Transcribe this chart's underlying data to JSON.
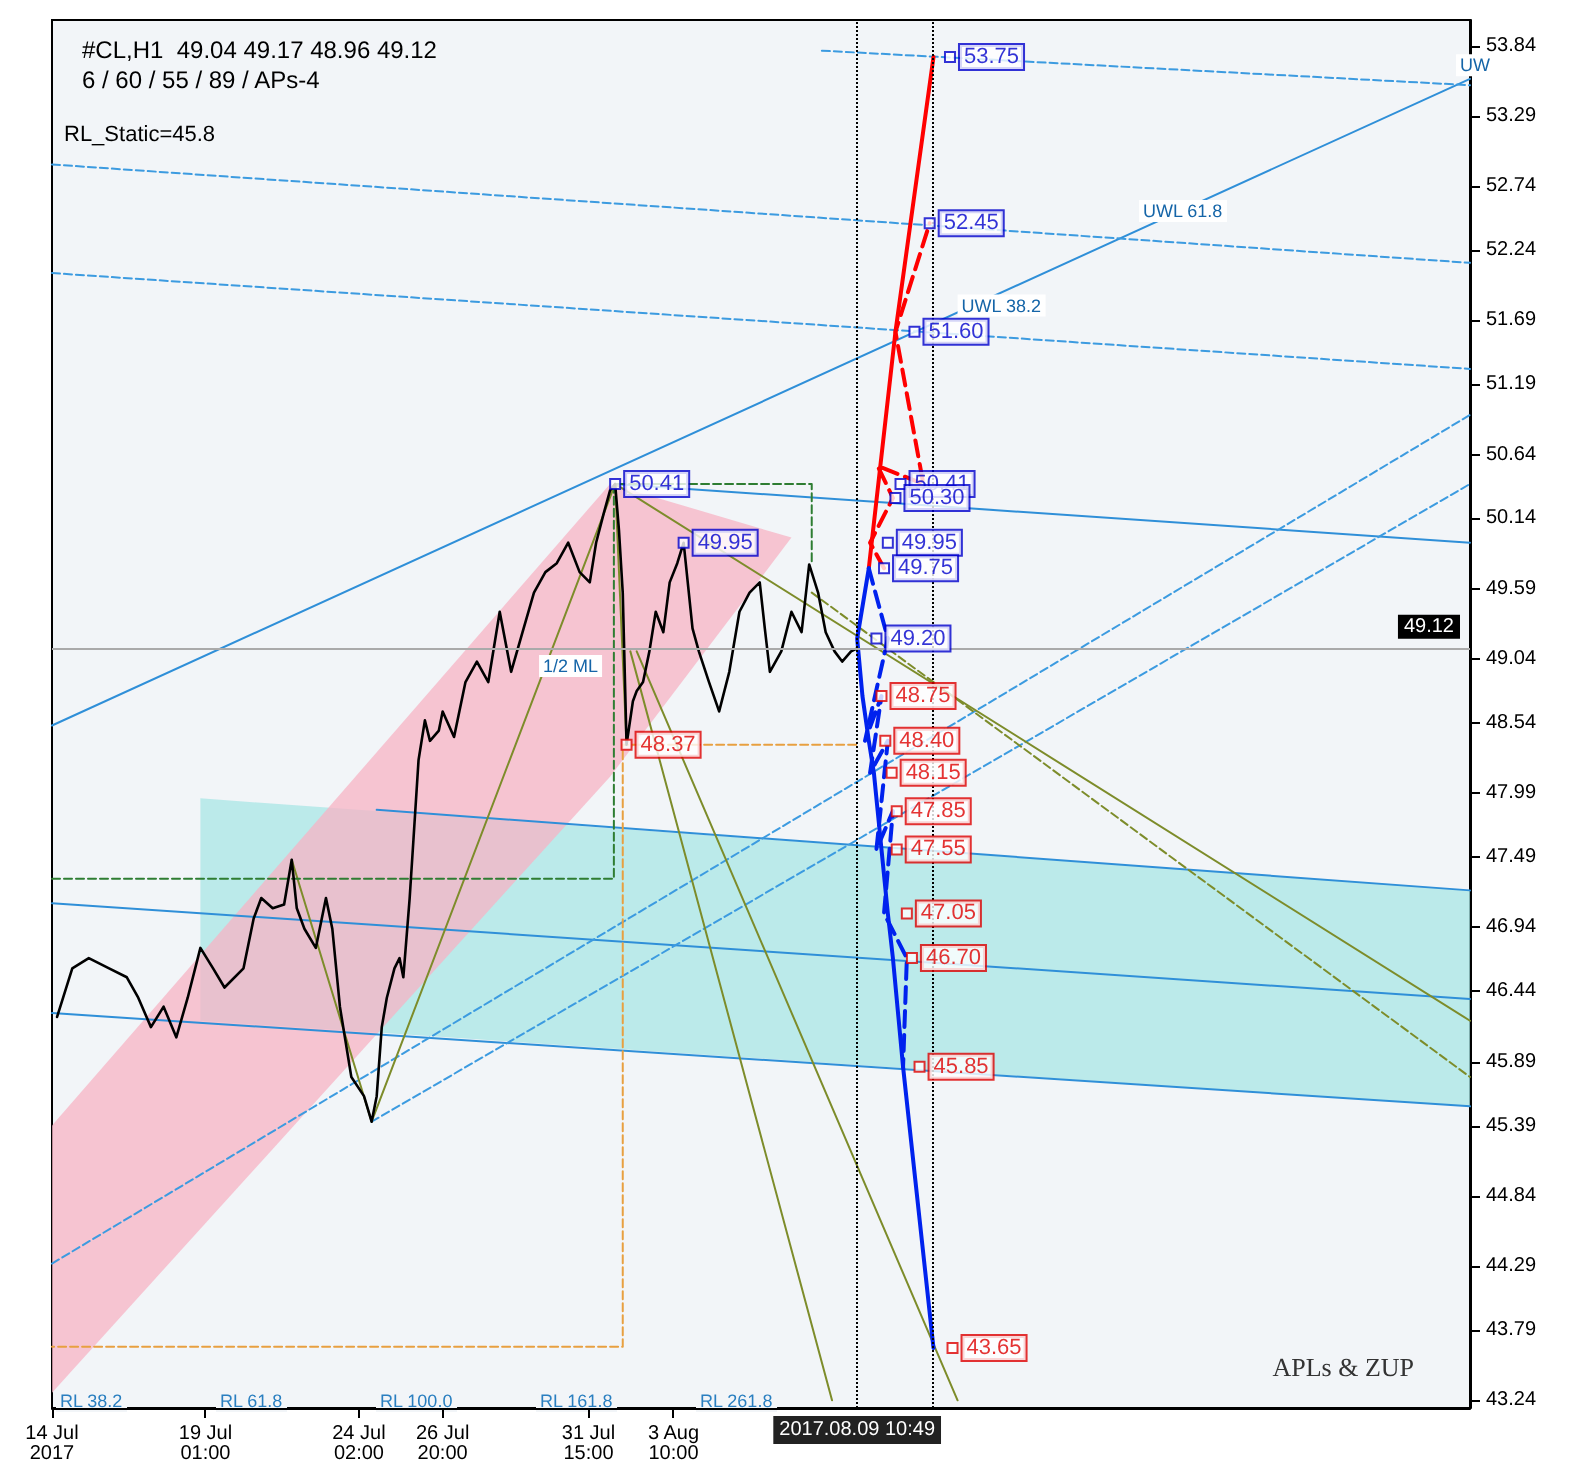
{
  "chart_data": {
    "type": "line",
    "title": "#CL,H1  49.04 49.17 48.96 49.12",
    "subtitle": "6 / 60 / 55 / 89 / APs-4",
    "annotations": [
      "RL_Static=45.8",
      "APLs & ZUP",
      "RL 38.2",
      "RL 61.8",
      "RL 100.0",
      "RL 161.8",
      "RL 261.8",
      {
        "text": "UWL 61.8",
        "x": "2017-08-18T17:00",
        "y": 52.46
      },
      {
        "text": "UWL 38.2",
        "x": "2017-08-12T18:00",
        "y": 51.72
      },
      {
        "text": "UW",
        "x": "2017-08-29T03:00",
        "y": 53.6
      },
      {
        "text": "1/2 ML",
        "x": "2017-07-30T00:00",
        "y": 48.9
      }
    ],
    "xlim": [
      "2017-07-14T00:00",
      "2017-08-29T14:00"
    ],
    "xticks": [
      {
        "value": "2017-07-14",
        "label": "14 Jul 2017"
      },
      {
        "value": "2017-07-19T01:00",
        "label": "19 Jul 01:00"
      },
      {
        "value": "2017-07-24T02:00",
        "label": "24 Jul 02:00"
      },
      {
        "value": "2017-07-26T20:00",
        "label": "26 Jul 20:00"
      },
      {
        "value": "2017-07-31T15:00",
        "label": "31 Jul 15:00"
      },
      {
        "value": "2017-08-03T10:00",
        "label": "3 Aug 10:00"
      }
    ],
    "ylim": [
      43.18,
      54.04
    ],
    "yticks": [
      43.24,
      43.79,
      44.29,
      44.84,
      45.39,
      45.89,
      46.44,
      46.94,
      47.49,
      47.99,
      48.54,
      49.04,
      49.59,
      50.14,
      50.64,
      51.19,
      51.69,
      52.24,
      52.74,
      53.29,
      53.84
    ],
    "marker": "none",
    "ref_lines": [
      {
        "axis": "y",
        "value": 49.12,
        "label": "49.12",
        "color": "#aaaaaa",
        "line_style": "solid"
      },
      {
        "axis": "x",
        "value": "2017-08-09T10:49",
        "label": "2017.08.09 10:49",
        "color": "#000000",
        "line_style": "dotted"
      },
      {
        "axis": "x",
        "value": "2017-08-11T23:00",
        "color": "#000000",
        "line_style": "dotted"
      }
    ],
    "series": [
      {
        "type": "area",
        "color": "#a8e6e6",
        "x": [
          "2017-07-18T21:00",
          "2017-08-29T14:00"
        ],
        "values": [
          null,
          null
        ],
        "lower": [
          46.21,
          45.54
        ],
        "upper": [
          47.95,
          47.23
        ]
      },
      {
        "type": "area",
        "color": "#f7b3c4",
        "x": [
          "2017-07-14T00:00",
          "2017-08-01T08:00",
          "2017-08-07T07:00"
        ],
        "values": [
          null,
          null,
          null
        ],
        "lower": [
          43.3,
          48.12,
          49.99
        ],
        "upper": [
          45.39,
          50.41,
          49.99
        ]
      },
      {
        "color": "#2f8fd8",
        "line_style": "solid",
        "x": [
          "2017-07-14T00:00",
          "2017-08-29T14:00"
        ],
        "values": [
          48.52,
          53.58
        ]
      },
      {
        "color": "#2f8fd8",
        "line_style": "solid",
        "x": [
          "2017-07-24T16:00",
          "2017-08-29T14:00"
        ],
        "values": [
          47.86,
          47.23
        ]
      },
      {
        "color": "#2f8fd8",
        "line_style": "solid",
        "x": [
          "2017-07-14T00:00",
          "2017-08-29T14:00"
        ],
        "values": [
          47.13,
          46.38
        ]
      },
      {
        "color": "#2f8fd8",
        "line_style": "solid",
        "x": [
          "2017-07-14T00:00",
          "2017-08-29T14:00"
        ],
        "values": [
          46.27,
          45.54
        ]
      },
      {
        "color": "#2f8fd8",
        "line_style": "solid",
        "x": [
          "2017-08-01T12:00",
          "2017-08-29T14:00"
        ],
        "values": [
          50.41,
          49.95
        ]
      },
      {
        "color": "#3c9be0",
        "line_style": "dashed",
        "x": [
          "2017-07-14T00:00",
          "2017-08-29T14:00"
        ],
        "values": [
          52.91,
          52.14
        ]
      },
      {
        "color": "#3c9be0",
        "line_style": "dashed",
        "x": [
          "2017-07-14T00:00",
          "2017-08-29T14:00"
        ],
        "values": [
          52.06,
          51.31
        ]
      },
      {
        "color": "#3c9be0",
        "line_style": "dashed",
        "x": [
          "2017-08-08T07:00",
          "2017-08-29T14:00"
        ],
        "values": [
          53.8,
          53.53
        ]
      },
      {
        "color": "#3c9be0",
        "line_style": "dashed",
        "x": [
          "2017-07-14T00:00",
          "2017-08-29T14:00"
        ],
        "values": [
          44.31,
          50.95
        ]
      },
      {
        "color": "#3c9be0",
        "line_style": "dashed",
        "x": [
          "2017-07-24T12:00",
          "2017-08-29T14:00"
        ],
        "values": [
          45.42,
          50.41
        ]
      },
      {
        "color": "#7d8c2a",
        "line_style": "solid",
        "x": [
          "2017-07-21T21:00",
          "2017-07-24T12:00",
          "2017-08-01T12:00",
          "2017-08-01T21:00"
        ],
        "values": [
          47.47,
          45.42,
          50.41,
          48.37
        ]
      },
      {
        "color": "#7d8c2a",
        "line_style": "solid",
        "x": [
          "2017-08-02T00:00",
          "2017-08-08T15:00"
        ],
        "values": [
          49.1,
          43.24
        ]
      },
      {
        "color": "#7d8c2a",
        "line_style": "solid",
        "x": [
          "2017-08-02T05:00",
          "2017-08-12T18:00"
        ],
        "values": [
          49.1,
          43.24
        ]
      },
      {
        "color": "#7d8c2a",
        "line_style": "solid",
        "x": [
          "2017-08-01T12:00",
          "2017-08-29T14:00"
        ],
        "values": [
          50.41,
          46.21
        ]
      },
      {
        "color": "#7d8c2a",
        "line_style": "dashed",
        "x": [
          "2017-08-07T23:00",
          "2017-08-29T14:00"
        ],
        "values": [
          49.56,
          45.77
        ]
      },
      {
        "color": "#2e7d32",
        "line_style": "dashed",
        "x": [
          "2017-07-14T00:00",
          "2017-08-01T11:00",
          "2017-08-01T11:00",
          "2017-08-07T23:00",
          "2017-08-07T23:00"
        ],
        "values": [
          47.32,
          47.32,
          50.41,
          50.41,
          49.79
        ]
      },
      {
        "color": "#e8a040",
        "line_style": "dashed",
        "x": [
          "2017-08-09T10:00",
          "2017-08-01T18:00",
          "2017-08-01T18:00",
          "2017-07-14T00:00"
        ],
        "values": [
          48.37,
          48.37,
          43.66,
          43.66
        ]
      },
      {
        "color": "#000000",
        "line_style": "solid",
        "x": [
          "2017-07-14T04:00",
          "2017-07-14T16:00",
          "2017-07-15T05:00",
          "2017-07-15T21:00",
          "2017-07-16T11:00",
          "2017-07-16T20:00",
          "2017-07-17T06:00",
          "2017-07-17T16:00",
          "2017-07-18T02:00",
          "2017-07-18T11:00",
          "2017-07-18T21:00",
          "2017-07-19T07:00",
          "2017-07-19T16:00",
          "2017-07-20T07:00",
          "2017-07-20T15:00",
          "2017-07-20T21:00",
          "2017-07-21T06:00",
          "2017-07-21T15:00",
          "2017-07-21T21:00",
          "2017-07-22T01:00",
          "2017-07-22T07:00",
          "2017-07-22T16:00",
          "2017-07-23T00:00",
          "2017-07-23T05:00",
          "2017-07-23T11:00",
          "2017-07-23T20:00",
          "2017-07-24T06:00",
          "2017-07-24T12:00",
          "2017-07-24T16:00",
          "2017-07-24T20:00",
          "2017-07-25T00:00",
          "2017-07-25T06:00",
          "2017-07-25T10:00",
          "2017-07-25T13:00",
          "2017-07-25T18:00",
          "2017-07-25T21:00",
          "2017-07-26T01:00",
          "2017-07-26T06:00",
          "2017-07-26T10:00",
          "2017-07-26T17:00",
          "2017-07-26T20:00",
          "2017-07-27T05:00",
          "2017-07-27T14:00",
          "2017-07-27T23:00",
          "2017-07-28T08:00",
          "2017-07-28T17:00",
          "2017-07-29T02:00",
          "2017-07-29T11:00",
          "2017-07-29T20:00",
          "2017-07-30T05:00",
          "2017-07-30T14:00",
          "2017-07-30T23:00",
          "2017-07-31T08:00",
          "2017-07-31T16:00",
          "2017-07-31T21:00",
          "2017-08-01T03:00",
          "2017-08-01T08:00",
          "2017-08-01T12:00",
          "2017-08-01T15:00",
          "2017-08-01T18:00",
          "2017-08-01T21:00",
          "2017-08-02T02:00",
          "2017-08-02T05:00",
          "2017-08-02T10:00",
          "2017-08-02T15:00",
          "2017-08-02T20:00",
          "2017-08-03T02:00",
          "2017-08-03T07:00",
          "2017-08-03T13:00",
          "2017-08-03T18:00",
          "2017-08-04T01:00",
          "2017-08-04T06:00",
          "2017-08-04T14:00",
          "2017-08-04T22:00",
          "2017-08-05T06:00",
          "2017-08-05T14:00",
          "2017-08-05T22:00",
          "2017-08-06T06:00",
          "2017-08-06T10:00",
          "2017-08-06T14:00",
          "2017-08-06T23:00",
          "2017-08-07T07:00",
          "2017-08-07T15:00",
          "2017-08-07T21:00",
          "2017-08-08T04:00",
          "2017-08-08T10:00",
          "2017-08-08T17:00",
          "2017-08-08T23:00",
          "2017-08-09T06:00",
          "2017-08-09T10:00"
        ],
        "values": [
          46.24,
          46.62,
          46.7,
          46.62,
          46.55,
          46.39,
          46.16,
          46.32,
          46.08,
          46.39,
          46.78,
          46.62,
          46.47,
          46.62,
          47.01,
          47.17,
          47.09,
          47.12,
          47.47,
          47.09,
          46.93,
          46.78,
          47.17,
          46.93,
          46.32,
          45.77,
          45.62,
          45.42,
          45.62,
          46.16,
          46.39,
          46.62,
          46.7,
          46.55,
          47.17,
          47.63,
          48.25,
          48.56,
          48.4,
          48.48,
          48.63,
          48.43,
          48.86,
          49.02,
          48.86,
          49.41,
          48.94,
          49.25,
          49.56,
          49.72,
          49.79,
          49.95,
          49.72,
          49.64,
          49.95,
          50.18,
          50.36,
          50.41,
          50.05,
          49.56,
          48.37,
          48.71,
          48.79,
          48.86,
          49.1,
          49.41,
          49.25,
          49.64,
          49.79,
          49.95,
          49.28,
          49.1,
          48.86,
          48.63,
          48.94,
          49.41,
          49.56,
          49.64,
          49.28,
          48.94,
          49.1,
          49.41,
          49.25,
          49.78,
          49.56,
          49.25,
          49.1,
          49.02,
          49.1,
          49.12
        ]
      },
      {
        "color": "#ff0000",
        "line_style": "solid",
        "x": [
          "2017-08-09T20:00",
          "2017-08-10T17:00",
          "2017-08-11T23:00"
        ],
        "values": [
          49.75,
          51.6,
          53.75
        ]
      },
      {
        "color": "#ff0000",
        "line_style": "dashed",
        "x": [
          "2017-08-10T08:00",
          "2017-08-09T21:00",
          "2017-08-10T15:00",
          "2017-08-10T03:00",
          "2017-08-11T15:00",
          "2017-08-10T17:00",
          "2017-08-11T20:00"
        ],
        "values": [
          49.75,
          49.95,
          50.3,
          50.55,
          50.41,
          51.6,
          52.45
        ]
      },
      {
        "color": "#0022ee",
        "line_style": "solid",
        "x": [
          "2017-08-09T20:00",
          "2017-08-09T10:49",
          "2017-08-09T15:00",
          "2017-08-09T20:00",
          "2017-08-10T00:00",
          "2017-08-10T03:00",
          "2017-08-10T06:00",
          "2017-08-10T11:00",
          "2017-08-10T15:00",
          "2017-08-10T23:00",
          "2017-08-11T23:00"
        ],
        "values": [
          49.75,
          49.2,
          48.75,
          48.4,
          48.15,
          47.85,
          47.55,
          47.05,
          46.7,
          45.85,
          43.65
        ]
      },
      {
        "color": "#0022ee",
        "line_style": "dashed",
        "x": [
          "2017-08-09T20:00",
          "2017-08-10T11:00",
          "2017-08-09T17:00",
          "2017-08-10T06:00",
          "2017-08-09T21:00",
          "2017-08-10T11:00",
          "2017-08-10T02:00",
          "2017-08-10T15:00",
          "2017-08-10T08:00",
          "2017-08-11T02:00",
          "2017-08-10T23:00"
        ],
        "values": [
          49.75,
          49.2,
          48.4,
          48.75,
          48.15,
          48.4,
          47.55,
          47.85,
          47.05,
          46.7,
          45.85
        ]
      },
      {
        "type": "scatter",
        "marker": "square",
        "color": "#0000cc",
        "x": [
          "2017-08-12T12:00",
          "2017-08-11T20:00",
          "2017-08-11T08:00",
          "2017-08-10T21:00",
          "2017-08-10T17:00",
          "2017-08-10T11:00",
          "2017-08-10T08:00",
          "2017-08-10T02:00",
          "2017-08-01T12:00",
          "2017-08-03T18:00"
        ],
        "values": [
          53.75,
          52.45,
          51.6,
          50.41,
          50.3,
          49.95,
          49.75,
          49.2,
          50.41,
          49.95
        ],
        "value_labels": [
          "53.75",
          "52.45",
          "51.60",
          "50.41",
          "50.30",
          "49.95",
          "49.75",
          "49.20",
          "50.41",
          "49.95"
        ]
      },
      {
        "type": "scatter",
        "marker": "square",
        "color": "#dd0000",
        "x": [
          "2017-08-10T06:00",
          "2017-08-10T09:00",
          "2017-08-10T14:00",
          "2017-08-10T18:00",
          "2017-08-10T18:00",
          "2017-08-11T02:00",
          "2017-08-11T06:00",
          "2017-08-11T12:00",
          "2017-08-12T14:00",
          "2017-08-01T21:00"
        ],
        "values": [
          48.75,
          48.4,
          48.15,
          47.85,
          47.55,
          47.05,
          46.7,
          45.85,
          43.65,
          48.37
        ],
        "value_labels": [
          "48.75",
          "48.40",
          "48.15",
          "47.85",
          "47.55",
          "47.05",
          "46.70",
          "45.85",
          "43.65",
          "48.37"
        ]
      }
    ]
  }
}
